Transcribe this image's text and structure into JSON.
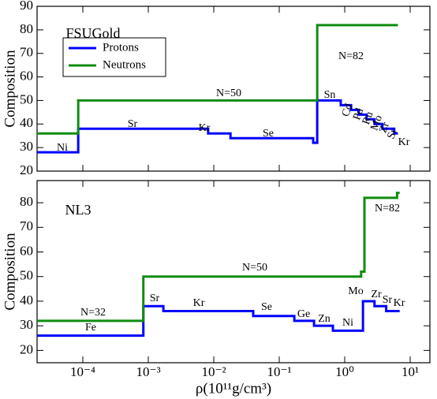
{
  "chart_data": [
    {
      "type": "line",
      "label": "FSUGold",
      "ylabel": "Composition",
      "xscale": "log",
      "xlim": [
        2e-05,
        20
      ],
      "xticks": [
        0.0001,
        0.001,
        0.01,
        0.1,
        1,
        10
      ],
      "ylim": [
        20,
        90
      ],
      "yticks": [
        20,
        30,
        40,
        50,
        60,
        70,
        80,
        90
      ],
      "legend": "upper left",
      "series": [
        {
          "name": "Protons",
          "color": "#0000ff",
          "x": [
            2e-05,
            8.5e-05,
            8.5e-05,
            0.0082,
            0.0082,
            0.018,
            0.018,
            0.33,
            0.33,
            0.38,
            0.38,
            0.87,
            0.87,
            1.25,
            1.25,
            1.64,
            1.64,
            2.16,
            2.16,
            2.85,
            2.85,
            3.76,
            3.76,
            5.7,
            5.7,
            6.5
          ],
          "values": [
            28,
            28,
            38,
            38,
            36,
            36,
            34,
            34,
            32,
            32,
            50,
            50,
            48,
            48,
            46,
            46,
            44,
            44,
            42,
            42,
            40,
            40,
            38,
            38,
            36,
            36
          ]
        },
        {
          "name": "Neutrons",
          "color": "#108c10",
          "x": [
            2e-05,
            8.5e-05,
            8.5e-05,
            0.38,
            0.38,
            6.5
          ],
          "values": [
            36,
            36,
            50,
            50,
            82,
            82
          ]
        }
      ],
      "annotations": [
        "Ni",
        "Sr",
        "Kr",
        "Se",
        "N=50",
        "Sn",
        "N=82",
        "Cd",
        "Pd",
        "Ru",
        "Mo",
        "Zr",
        "Sr",
        "Kr"
      ]
    },
    {
      "type": "line",
      "label": "NL3",
      "ylabel": "Composition",
      "xlabel": "ρ(10¹¹g/cm³)",
      "xscale": "log",
      "xlim": [
        2e-05,
        20
      ],
      "xticks": [
        {
          "value": 0.0001,
          "label": "10⁻⁴"
        },
        {
          "value": 0.001,
          "label": "10⁻³"
        },
        {
          "value": 0.01,
          "label": "10⁻²"
        },
        {
          "value": 0.1,
          "label": "10⁻¹"
        },
        {
          "value": 1,
          "label": "10⁰"
        },
        {
          "value": 10,
          "label": "10¹"
        }
      ],
      "ylim": [
        15,
        89
      ],
      "yticks": [
        20,
        30,
        40,
        50,
        60,
        70,
        80
      ],
      "series": [
        {
          "color": "#0000ff",
          "x": [
            2e-05,
            0.00084,
            0.00084,
            0.0017,
            0.0017,
            0.04,
            0.04,
            0.17,
            0.17,
            0.34,
            0.34,
            0.66,
            0.66,
            1.9,
            1.9,
            2.85,
            2.85,
            4.3,
            4.3,
            6.9
          ],
          "values": [
            26,
            26,
            38,
            38,
            36,
            36,
            34,
            34,
            32,
            32,
            30,
            30,
            28,
            28,
            40,
            40,
            38,
            38,
            36,
            36
          ]
        },
        {
          "color": "#108c10",
          "x": [
            2e-05,
            0.00084,
            0.00084,
            1.78,
            1.78,
            2.0,
            2.0,
            6.3,
            6.3,
            6.9
          ],
          "values": [
            32,
            32,
            50,
            50,
            52,
            52,
            82,
            82,
            84,
            84
          ]
        }
      ],
      "annotations": [
        "N=32",
        "Fe",
        "Sr",
        "Kr",
        "Se",
        "Ge",
        "Zn",
        "Ni",
        "Mo",
        "Zr",
        "Sr",
        "Kr",
        "N=50",
        "N=82"
      ]
    }
  ]
}
